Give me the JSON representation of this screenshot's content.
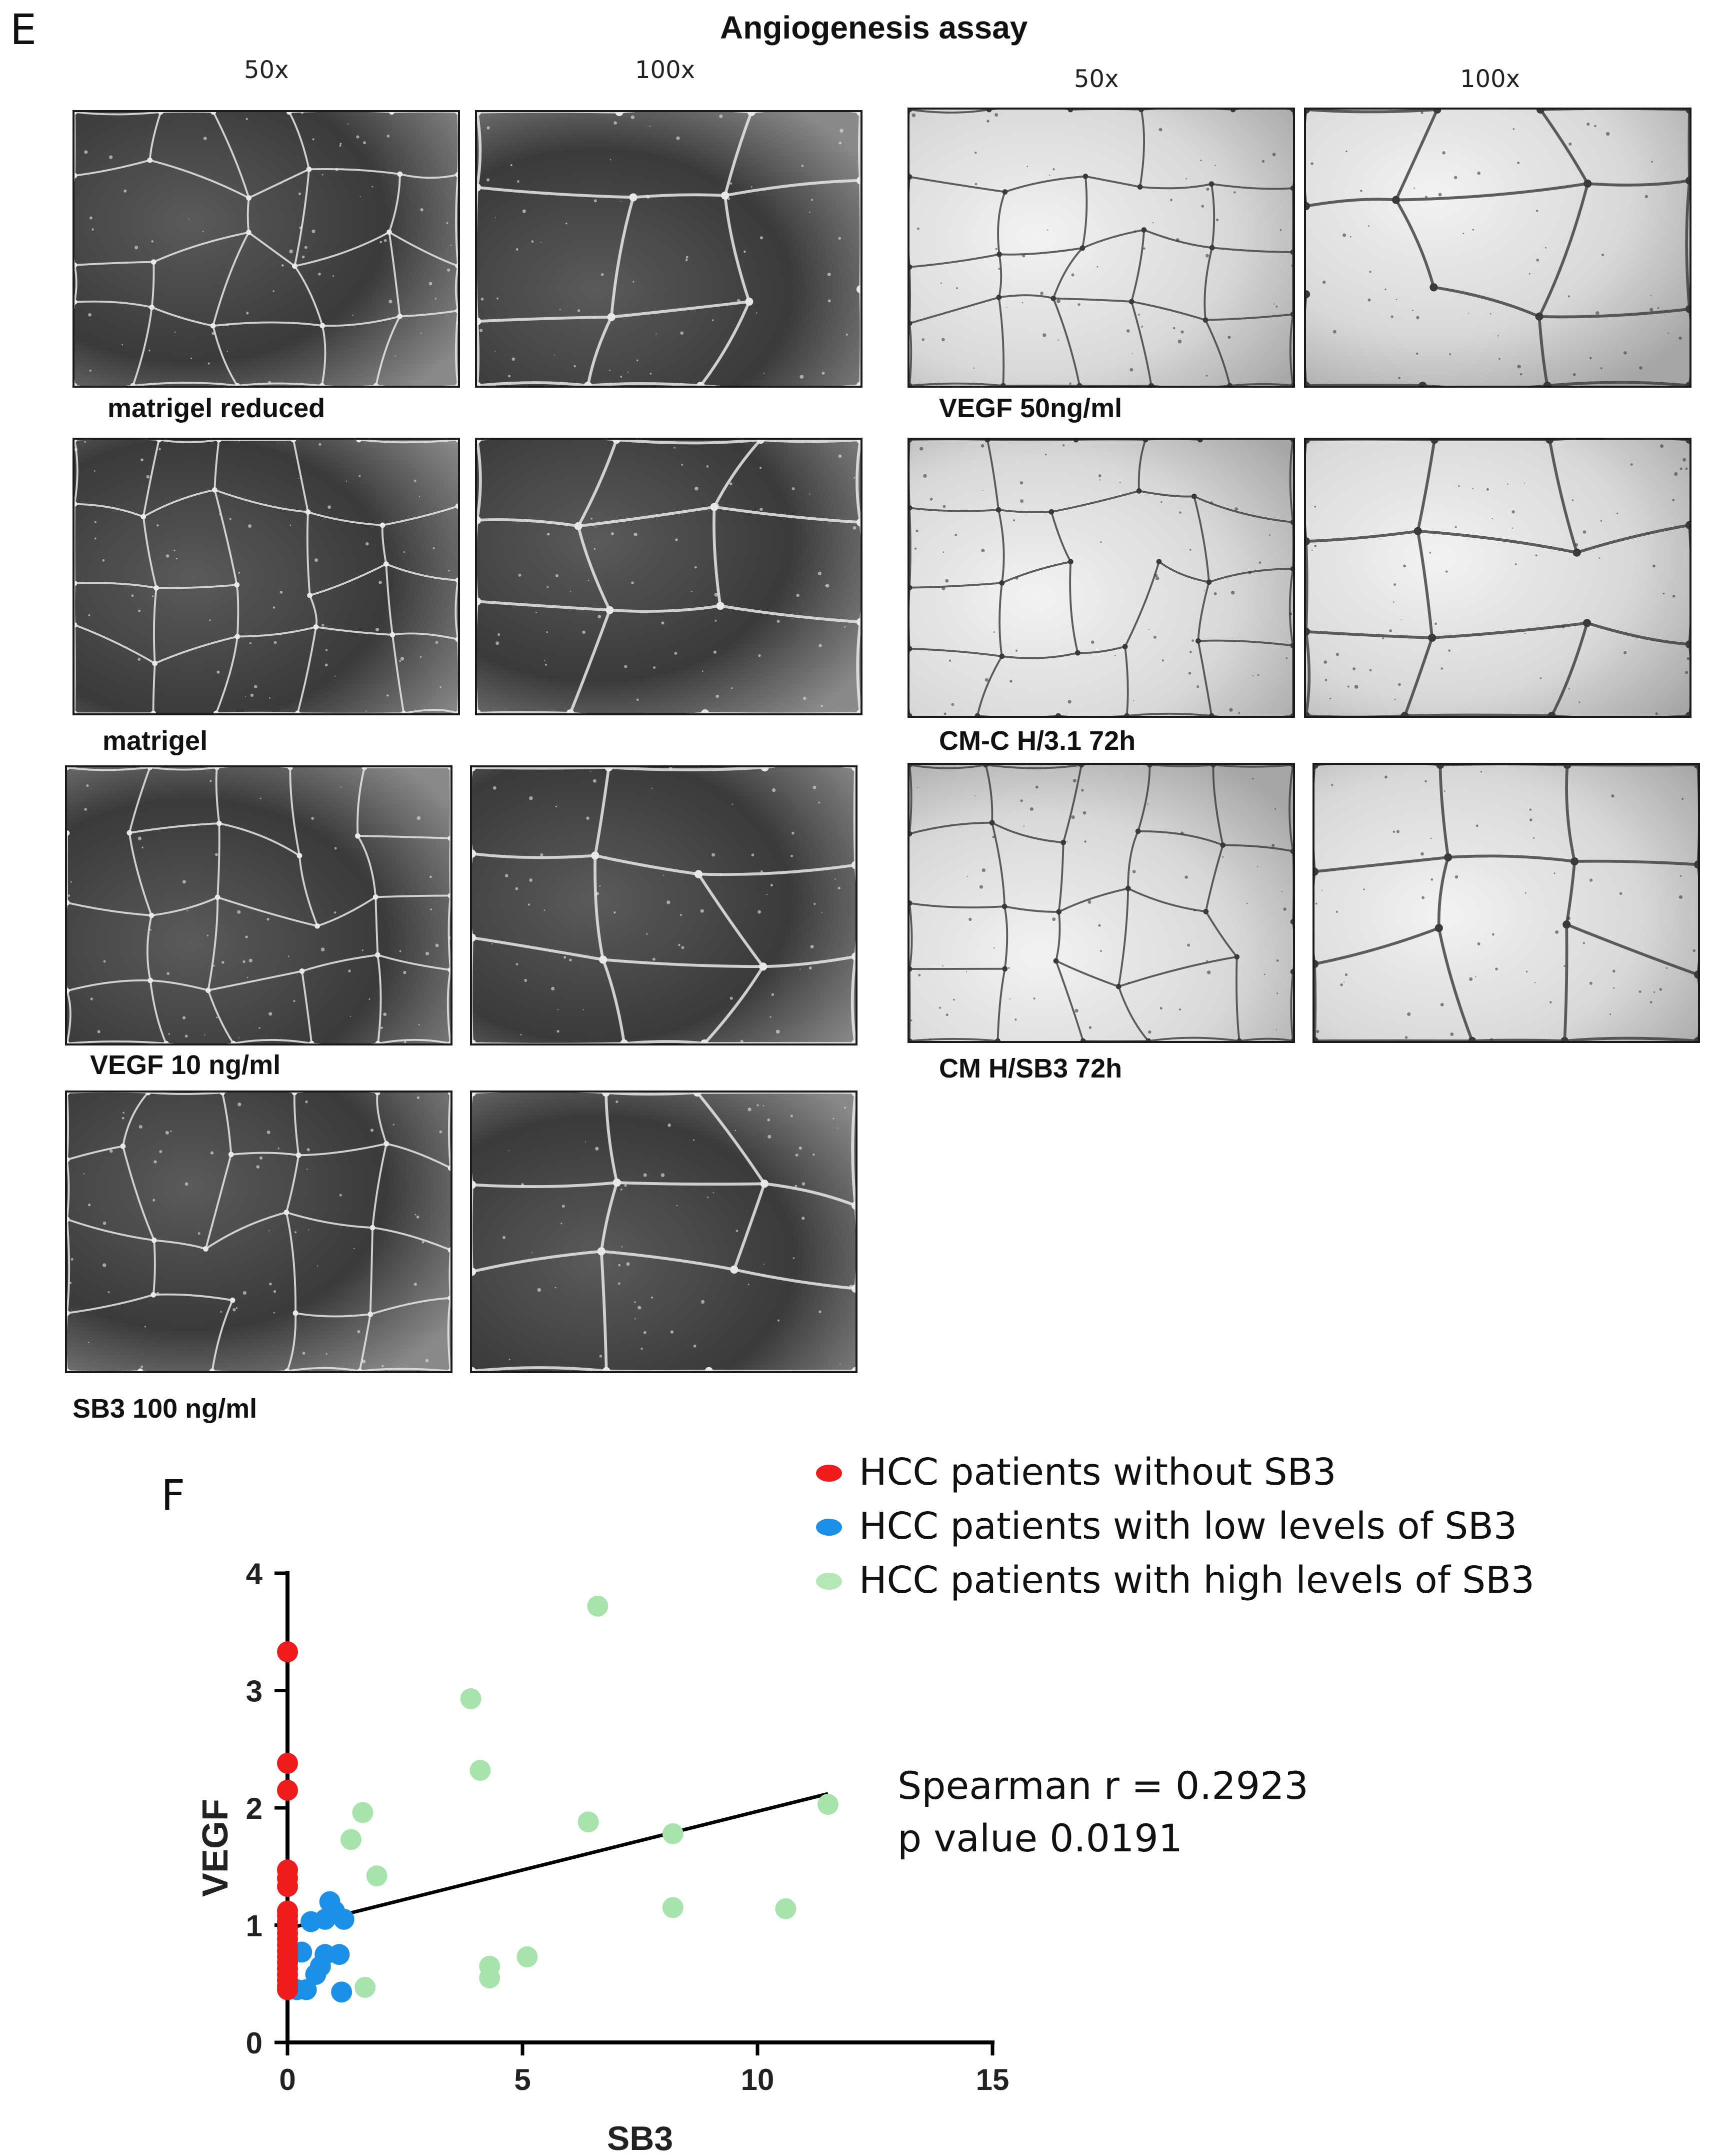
{
  "panel_e": {
    "letter": "E",
    "title": "Angiogenesis assay",
    "magnifications": [
      "50x",
      "100x",
      "50x",
      "100x"
    ],
    "left_conditions": [
      "matrigel reduced",
      "matrigel",
      "VEGF 10 ng/ml",
      "SB3 100 ng/ml"
    ],
    "right_conditions": [
      "VEGF 50ng/ml",
      "CM-C H/3.1 72h",
      "CM H/SB3 72h"
    ]
  },
  "panel_f": {
    "letter": "F",
    "legend": [
      {
        "label": "HCC patients without SB3",
        "color": "#ee1c1c"
      },
      {
        "label": "HCC patients with low levels of SB3",
        "color": "#1c8fe6"
      },
      {
        "label": "HCC patients with high levels of SB3",
        "color": "#b5e6b8"
      }
    ],
    "stats": {
      "line1": "Spearman r = 0.2923",
      "line2": "p value 0.0191"
    }
  },
  "chart_data": {
    "type": "scatter",
    "xlabel": "SB3",
    "ylabel": "VEGF",
    "xlim": [
      0,
      15
    ],
    "ylim": [
      0,
      4
    ],
    "xticks": [
      "0",
      "5",
      "10",
      "15"
    ],
    "yticks": [
      "0",
      "1",
      "2",
      "3",
      "4"
    ],
    "legend_position": "top-right",
    "series": [
      {
        "name": "HCC patients without SB3",
        "color": "#ee1c1c",
        "points": [
          [
            0,
            3.33
          ],
          [
            0,
            2.38
          ],
          [
            0,
            2.15
          ],
          [
            0,
            1.47
          ],
          [
            0,
            1.4
          ],
          [
            0,
            1.33
          ],
          [
            0,
            1.12
          ],
          [
            0,
            1.08
          ],
          [
            0,
            1.03
          ],
          [
            0,
            0.98
          ],
          [
            0,
            0.93
          ],
          [
            0,
            0.88
          ],
          [
            0,
            0.83
          ],
          [
            0,
            0.78
          ],
          [
            0,
            0.73
          ],
          [
            0,
            0.68
          ],
          [
            0,
            0.63
          ],
          [
            0,
            0.58
          ],
          [
            0,
            0.53
          ],
          [
            0,
            0.48
          ],
          [
            0,
            0.45
          ]
        ]
      },
      {
        "name": "HCC patients with low levels of SB3",
        "color": "#1c8fe6",
        "points": [
          [
            0.9,
            1.2
          ],
          [
            1.0,
            1.12
          ],
          [
            0.8,
            1.05
          ],
          [
            1.2,
            1.05
          ],
          [
            0.5,
            1.03
          ],
          [
            0.3,
            0.77
          ],
          [
            0.8,
            0.75
          ],
          [
            1.1,
            0.75
          ],
          [
            0.7,
            0.65
          ],
          [
            0.6,
            0.58
          ],
          [
            0.2,
            0.45
          ],
          [
            0.4,
            0.45
          ],
          [
            1.15,
            0.43
          ]
        ]
      },
      {
        "name": "HCC patients with high levels of SB3",
        "color": "#a8e2ad",
        "points": [
          [
            6.6,
            3.72
          ],
          [
            3.9,
            2.93
          ],
          [
            4.1,
            2.32
          ],
          [
            1.6,
            1.96
          ],
          [
            11.5,
            2.03
          ],
          [
            1.35,
            1.73
          ],
          [
            6.4,
            1.88
          ],
          [
            8.2,
            1.78
          ],
          [
            1.9,
            1.42
          ],
          [
            8.2,
            1.15
          ],
          [
            10.6,
            1.14
          ],
          [
            5.1,
            0.73
          ],
          [
            4.3,
            0.65
          ],
          [
            4.3,
            0.55
          ],
          [
            1.65,
            0.47
          ]
        ]
      }
    ],
    "trendline": {
      "x": [
        0,
        11.5
      ],
      "y": [
        0.97,
        2.12
      ]
    }
  }
}
